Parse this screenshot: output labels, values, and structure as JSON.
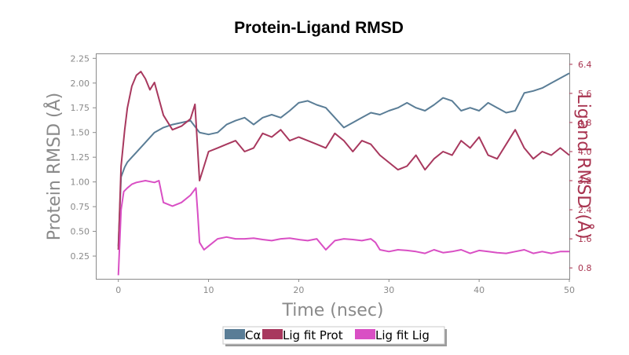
{
  "chart_data": {
    "type": "line",
    "title": "Protein-Ligand RMSD",
    "xlabel": "Time (nsec)",
    "ylabel": "Protein RMSD (Å)",
    "ylabel_right": "Ligand RMSD (Å)",
    "xlim": [
      -2.5,
      50
    ],
    "ylim": [
      0.02,
      2.3
    ],
    "ylim_right": [
      0.5,
      6.7
    ],
    "x_ticks": [
      0,
      10,
      20,
      30,
      40,
      50
    ],
    "y_ticks": [
      0.25,
      0.5,
      0.75,
      1.0,
      1.25,
      1.5,
      1.75,
      2.0,
      2.25
    ],
    "y_tick_labels": [
      "0.25",
      "0.50",
      "0.75",
      "1.00",
      "1.25",
      "1.50",
      "1.75",
      "2.00",
      "2.25"
    ],
    "y_right_ticks": [
      0.8,
      1.6,
      2.4,
      3.2,
      4.0,
      4.8,
      5.6,
      6.4
    ],
    "y_right_tick_labels": [
      "0.8",
      "1.6",
      "2.4",
      "3.2",
      "4.0",
      "4.8",
      "5.6",
      "6.4"
    ],
    "legend_position": "bottom-center",
    "series": [
      {
        "name": "Cα",
        "axis": "left",
        "color": "#5a7d96",
        "x": [
          0,
          0.3,
          0.7,
          1,
          1.5,
          2,
          3,
          4,
          5,
          6,
          7,
          8,
          9,
          10,
          11,
          12,
          13,
          14,
          15,
          16,
          17,
          18,
          19,
          20,
          21,
          22,
          23,
          24,
          25,
          26,
          27,
          28,
          29,
          30,
          31,
          32,
          33,
          34,
          35,
          36,
          37,
          38,
          39,
          40,
          41,
          42,
          43,
          44,
          45,
          46,
          47,
          48,
          49,
          50
        ],
        "y": [
          0.35,
          1.05,
          1.15,
          1.2,
          1.25,
          1.3,
          1.4,
          1.5,
          1.55,
          1.58,
          1.6,
          1.62,
          1.5,
          1.48,
          1.5,
          1.58,
          1.62,
          1.65,
          1.58,
          1.65,
          1.68,
          1.65,
          1.72,
          1.8,
          1.82,
          1.78,
          1.75,
          1.65,
          1.55,
          1.6,
          1.65,
          1.7,
          1.68,
          1.72,
          1.75,
          1.8,
          1.75,
          1.72,
          1.78,
          1.85,
          1.82,
          1.72,
          1.75,
          1.72,
          1.8,
          1.75,
          1.7,
          1.72,
          1.9,
          1.92,
          1.95,
          2.0,
          2.05,
          2.1
        ]
      },
      {
        "name": "Lig fit Prot",
        "axis": "right",
        "color": "#a8385e",
        "x": [
          0,
          0.3,
          0.7,
          1,
          1.5,
          2,
          2.5,
          3,
          3.5,
          4,
          5,
          6,
          7,
          8,
          8.5,
          9,
          10,
          11,
          12,
          13,
          14,
          15,
          16,
          17,
          18,
          19,
          20,
          21,
          22,
          23,
          24,
          25,
          26,
          27,
          28,
          29,
          30,
          31,
          32,
          33,
          34,
          35,
          36,
          37,
          38,
          39,
          40,
          41,
          42,
          43,
          44,
          45,
          46,
          47,
          48,
          49,
          50
        ],
        "y": [
          1.3,
          3.6,
          4.6,
          5.2,
          5.8,
          6.1,
          6.2,
          6.0,
          5.7,
          5.9,
          5.0,
          4.6,
          4.7,
          4.9,
          5.3,
          3.2,
          4.0,
          4.1,
          4.2,
          4.3,
          4.0,
          4.1,
          4.5,
          4.4,
          4.6,
          4.3,
          4.4,
          4.3,
          4.2,
          4.1,
          4.5,
          4.3,
          4.0,
          4.3,
          4.2,
          3.9,
          3.7,
          3.5,
          3.6,
          3.9,
          3.5,
          3.8,
          4.0,
          3.9,
          4.3,
          4.1,
          4.4,
          3.9,
          3.8,
          4.2,
          4.6,
          4.1,
          3.8,
          4.0,
          3.9,
          4.1,
          3.9
        ]
      },
      {
        "name": "Lig fit Lig",
        "axis": "right",
        "color": "#d94fc4",
        "x": [
          0,
          0.3,
          0.6,
          1,
          1.5,
          2,
          3,
          4,
          4.5,
          5,
          6,
          7,
          8,
          8.6,
          8.8,
          9,
          9.5,
          10,
          11,
          12,
          13,
          14,
          15,
          16,
          17,
          18,
          19,
          20,
          21,
          22,
          23,
          24,
          25,
          26,
          27,
          28,
          28.5,
          29,
          30,
          31,
          32,
          33,
          34,
          35,
          36,
          37,
          38,
          39,
          40,
          41,
          42,
          43,
          44,
          45,
          46,
          47,
          48,
          49,
          50
        ],
        "y": [
          0.6,
          2.4,
          2.9,
          3.0,
          3.1,
          3.15,
          3.2,
          3.15,
          3.2,
          2.6,
          2.5,
          2.6,
          2.8,
          3.0,
          2.3,
          1.5,
          1.3,
          1.4,
          1.6,
          1.65,
          1.6,
          1.6,
          1.62,
          1.58,
          1.55,
          1.6,
          1.62,
          1.58,
          1.55,
          1.6,
          1.3,
          1.55,
          1.6,
          1.58,
          1.55,
          1.6,
          1.5,
          1.3,
          1.25,
          1.3,
          1.28,
          1.25,
          1.2,
          1.3,
          1.22,
          1.25,
          1.3,
          1.2,
          1.28,
          1.25,
          1.22,
          1.2,
          1.25,
          1.3,
          1.2,
          1.25,
          1.2,
          1.25,
          1.25
        ]
      }
    ]
  }
}
